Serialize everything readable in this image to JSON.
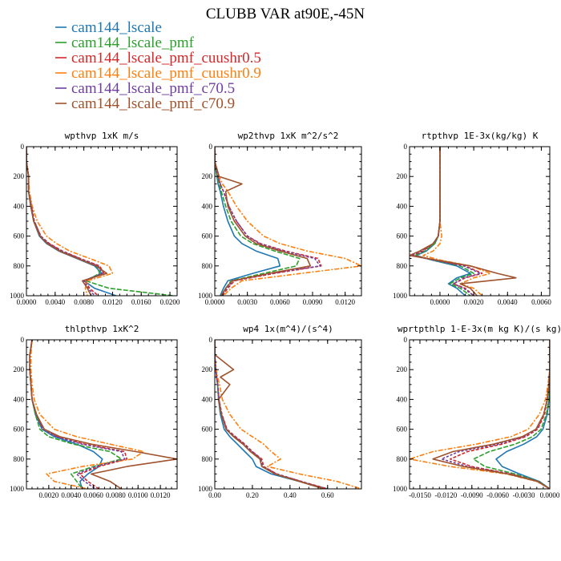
{
  "figure": {
    "title": "CLUBB VAR at90E,-45N"
  },
  "legend": [
    {
      "name": "cam144_lscale",
      "color": "#1f77b4",
      "dash": ""
    },
    {
      "name": "cam144_lscale_pmf",
      "color": "#2ca02c",
      "dash": "6,2"
    },
    {
      "name": "cam144_lscale_pmf_cuushr0.5",
      "color": "#d62728",
      "dash": "4,2"
    },
    {
      "name": "cam144_lscale_pmf_cuushr0.9",
      "color": "#ff7f0e",
      "dash": "6,2,2,2"
    },
    {
      "name": "cam144_lscale_pmf_c70.5",
      "color": "#6f3fa0",
      "dash": "3,2"
    },
    {
      "name": "cam144_lscale_pmf_c70.9",
      "color": "#a0522d",
      "dash": ""
    }
  ],
  "chart_data": [
    {
      "type": "line",
      "title": "wpthvp  1xK m/s",
      "xlim": [
        0,
        0.021
      ],
      "ylim": [
        1000,
        0
      ],
      "xticks": [
        0.0,
        0.004,
        0.008,
        0.012,
        0.016,
        0.02
      ],
      "xtick_labels": [
        "0.0000",
        "0.0040",
        "0.0080",
        "0.0120",
        "0.0160",
        "0.0200"
      ],
      "yticks": [
        0,
        200,
        400,
        600,
        800,
        1000
      ],
      "ytick_labels": [
        "0",
        "200",
        "400",
        "600",
        "800",
        "1000"
      ],
      "y": [
        0,
        100,
        200,
        300,
        400,
        500,
        600,
        650,
        700,
        750,
        800,
        850,
        900,
        950,
        1000
      ],
      "series": [
        {
          "name": "cam144_lscale",
          "values": [
            0,
            0,
            0.0003,
            0.0003,
            0.0006,
            0.001,
            0.0018,
            0.0028,
            0.0045,
            0.007,
            0.0095,
            0.0105,
            0.008,
            0.0095,
            0.0125
          ]
        },
        {
          "name": "cam144_lscale_pmf",
          "values": [
            0,
            0,
            0.0003,
            0.0003,
            0.0006,
            0.001,
            0.0019,
            0.003,
            0.0047,
            0.0072,
            0.0098,
            0.0102,
            0.0083,
            0.0115,
            0.0205
          ]
        },
        {
          "name": "cam144_lscale_pmf_cuushr0.5",
          "values": [
            0,
            0,
            0.0003,
            0.0003,
            0.0007,
            0.0011,
            0.002,
            0.0032,
            0.005,
            0.0075,
            0.0102,
            0.0108,
            0.0082,
            0.0088,
            0.01
          ]
        },
        {
          "name": "cam144_lscale_pmf_cuushr0.9",
          "values": [
            0,
            0,
            0.0003,
            0.0004,
            0.0008,
            0.0015,
            0.0028,
            0.0042,
            0.006,
            0.0088,
            0.0115,
            0.012,
            0.0085,
            0.0082,
            0.0085
          ]
        },
        {
          "name": "cam144_lscale_pmf_c70.5",
          "values": [
            0,
            0,
            0.0003,
            0.0003,
            0.0007,
            0.0011,
            0.002,
            0.0031,
            0.0049,
            0.0074,
            0.01,
            0.0106,
            0.008,
            0.0086,
            0.0095
          ]
        },
        {
          "name": "cam144_lscale_pmf_c70.9",
          "values": [
            0,
            0,
            0.0003,
            0.0003,
            0.0006,
            0.001,
            0.0019,
            0.0029,
            0.0046,
            0.0071,
            0.0097,
            0.0112,
            0.0078,
            0.0085,
            0.009
          ]
        }
      ]
    },
    {
      "type": "line",
      "title": "wp2thvp  1xK m^2/s^2",
      "xlim": [
        0,
        0.0135
      ],
      "ylim": [
        1000,
        0
      ],
      "xticks": [
        0.0,
        0.003,
        0.006,
        0.009,
        0.012
      ],
      "xtick_labels": [
        "0.0000",
        "0.0030",
        "0.0060",
        "0.0090",
        "0.0120"
      ],
      "yticks": [
        0,
        200,
        400,
        600,
        800,
        1000
      ],
      "ytick_labels": [
        "0",
        "200",
        "400",
        "600",
        "800",
        "1000"
      ],
      "y": [
        0,
        100,
        200,
        250,
        300,
        400,
        500,
        600,
        650,
        700,
        750,
        800,
        850,
        900,
        950,
        1000
      ],
      "series": [
        {
          "name": "cam144_lscale",
          "values": [
            0,
            0,
            0.0002,
            0.0003,
            0.0005,
            0.0008,
            0.0012,
            0.0018,
            0.0025,
            0.0038,
            0.0058,
            0.006,
            0.0035,
            0.0012,
            0.0008,
            0.0005
          ]
        },
        {
          "name": "cam144_lscale_pmf",
          "values": [
            0,
            0,
            0.0002,
            0.0004,
            0.0006,
            0.001,
            0.0015,
            0.0024,
            0.0035,
            0.0055,
            0.0078,
            0.0075,
            0.0045,
            0.0015,
            0.001,
            0.0006
          ]
        },
        {
          "name": "cam144_lscale_pmf_cuushr0.5",
          "values": [
            0,
            0,
            0.0003,
            0.0005,
            0.0008,
            0.0013,
            0.002,
            0.003,
            0.0042,
            0.0065,
            0.0095,
            0.0098,
            0.0055,
            0.0018,
            0.0012,
            0.0007
          ]
        },
        {
          "name": "cam144_lscale_pmf_cuushr0.9",
          "values": [
            0,
            0,
            0.0004,
            0.0007,
            0.0012,
            0.002,
            0.003,
            0.0045,
            0.006,
            0.0085,
            0.012,
            0.0135,
            0.008,
            0.0025,
            0.0015,
            0.0008
          ]
        },
        {
          "name": "cam144_lscale_pmf_c70.5",
          "values": [
            0,
            0,
            0.0003,
            0.0005,
            0.0008,
            0.0013,
            0.002,
            0.003,
            0.0041,
            0.0063,
            0.0092,
            0.0097,
            0.0052,
            0.0017,
            0.0011,
            0.0006
          ]
        },
        {
          "name": "cam144_lscale_pmf_c70.9",
          "values": [
            0,
            0,
            0.0004,
            0.0025,
            0.001,
            0.0012,
            0.0018,
            0.0028,
            0.0038,
            0.006,
            0.0085,
            0.0088,
            0.005,
            0.0016,
            0.001,
            0.0006
          ]
        }
      ]
    },
    {
      "type": "line",
      "title": "rtpthvp  1E-3x(kg/kg) K",
      "xlim": [
        -0.0018,
        0.0065
      ],
      "ylim": [
        1000,
        0
      ],
      "xticks": [
        0.0,
        0.002,
        0.004,
        0.006
      ],
      "xtick_labels": [
        "0.0000",
        "0.0020",
        "0.0040",
        "0.0060"
      ],
      "yticks": [
        0,
        200,
        400,
        600,
        800,
        1000
      ],
      "ytick_labels": [
        "0",
        "200",
        "400",
        "600",
        "800",
        "1000"
      ],
      "y": [
        0,
        200,
        400,
        500,
        600,
        650,
        700,
        730,
        760,
        800,
        850,
        880,
        920,
        950,
        1000
      ],
      "series": [
        {
          "name": "cam144_lscale",
          "values": [
            0,
            0,
            0,
            0,
            -0.0001,
            -0.0003,
            -0.0008,
            -0.0014,
            -0.0005,
            0.001,
            0.0018,
            0.001,
            0.0005,
            0.001,
            0.0015
          ]
        },
        {
          "name": "cam144_lscale_pmf",
          "values": [
            0,
            0,
            0,
            0,
            -0.0001,
            -0.0003,
            -0.0009,
            -0.0015,
            -0.0004,
            0.0012,
            0.002,
            0.0012,
            0.0006,
            0.0012,
            0.0018
          ]
        },
        {
          "name": "cam144_lscale_pmf_cuushr0.5",
          "values": [
            0,
            0,
            0,
            0,
            -0.0001,
            -0.0004,
            -0.001,
            -0.0016,
            -0.0003,
            0.0015,
            0.0025,
            0.0015,
            0.0008,
            0.0015,
            0.002
          ]
        },
        {
          "name": "cam144_lscale_pmf_cuushr0.9",
          "values": [
            0,
            0,
            0,
            0,
            0.0001,
            0,
            -0.0004,
            -0.001,
            0,
            0.0018,
            0.003,
            0.002,
            0.0012,
            0.002,
            0.0025
          ]
        },
        {
          "name": "cam144_lscale_pmf_c70.5",
          "values": [
            0,
            0,
            0,
            0,
            -0.0001,
            -0.0004,
            -0.0011,
            -0.0017,
            -0.0004,
            0.0014,
            0.0024,
            0.0014,
            0.0008,
            0.0014,
            0.002
          ]
        },
        {
          "name": "cam144_lscale_pmf_c70.9",
          "values": [
            0,
            0,
            0,
            0,
            -0.0001,
            -0.0004,
            -0.0012,
            -0.0018,
            -0.0002,
            0.0018,
            0.0034,
            0.0045,
            0.0012,
            0.0018,
            0.0022
          ]
        }
      ]
    },
    {
      "type": "line",
      "title": "thlpthvp  1xK^2",
      "xlim": [
        0,
        0.0135
      ],
      "ylim": [
        1000,
        0
      ],
      "xticks": [
        0.002,
        0.004,
        0.006,
        0.008,
        0.01,
        0.012
      ],
      "xtick_labels": [
        "0.0020",
        "0.0040",
        "0.0060",
        "0.0080",
        "0.0100",
        "0.0120"
      ],
      "yticks": [
        0,
        200,
        400,
        600,
        800,
        1000
      ],
      "ytick_labels": [
        "0",
        "200",
        "400",
        "600",
        "800",
        "1000"
      ],
      "y": [
        0,
        100,
        200,
        300,
        400,
        500,
        600,
        650,
        700,
        750,
        800,
        850,
        900,
        950,
        1000
      ],
      "series": [
        {
          "name": "cam144_lscale",
          "values": [
            0.0005,
            0.0003,
            0.0003,
            0.0004,
            0.0005,
            0.0008,
            0.0014,
            0.0025,
            0.0045,
            0.006,
            0.0068,
            0.0065,
            0.0055,
            0.0048,
            0.005
          ]
        },
        {
          "name": "cam144_lscale_pmf",
          "values": [
            0.0005,
            0.0003,
            0.0003,
            0.0004,
            0.0005,
            0.0008,
            0.0012,
            0.002,
            0.0042,
            0.0075,
            0.0085,
            0.006,
            0.004,
            0.0045,
            0.005
          ]
        },
        {
          "name": "cam144_lscale_pmf_cuushr0.5",
          "values": [
            0.0005,
            0.0003,
            0.0003,
            0.0004,
            0.0005,
            0.0009,
            0.0015,
            0.0028,
            0.0052,
            0.0088,
            0.009,
            0.0065,
            0.0048,
            0.0055,
            0.0065
          ]
        },
        {
          "name": "cam144_lscale_pmf_cuushr0.9",
          "values": [
            0.0005,
            0.0004,
            0.0004,
            0.0005,
            0.0007,
            0.0012,
            0.0025,
            0.0045,
            0.0075,
            0.0105,
            0.0095,
            0.005,
            0.0018,
            0.0025,
            0.0055
          ]
        },
        {
          "name": "cam144_lscale_pmf_c70.5",
          "values": [
            0.0005,
            0.0003,
            0.0003,
            0.0004,
            0.0005,
            0.0009,
            0.0015,
            0.0027,
            0.005,
            0.0085,
            0.0088,
            0.0062,
            0.0045,
            0.0052,
            0.0062
          ]
        },
        {
          "name": "cam144_lscale_pmf_c70.9",
          "values": [
            0.0005,
            0.0003,
            0.0003,
            0.0004,
            0.0005,
            0.0009,
            0.0016,
            0.003,
            0.0058,
            0.0098,
            0.0135,
            0.009,
            0.0058,
            0.0075,
            0.0085
          ]
        }
      ]
    },
    {
      "type": "line",
      "title": "wp4  1x(m^4)/(s^4)",
      "xlim": [
        0,
        0.78
      ],
      "ylim": [
        1000,
        0
      ],
      "xticks": [
        0.0,
        0.2,
        0.4,
        0.6
      ],
      "xtick_labels": [
        "0.00",
        "0.20",
        "0.40",
        "0.60"
      ],
      "yticks": [
        0,
        200,
        400,
        600,
        800,
        1000
      ],
      "ytick_labels": [
        "0",
        "200",
        "400",
        "600",
        "800",
        "1000"
      ],
      "y": [
        0,
        100,
        200,
        250,
        300,
        400,
        500,
        600,
        650,
        700,
        750,
        800,
        850,
        900,
        950,
        1000
      ],
      "series": [
        {
          "name": "cam144_lscale",
          "values": [
            0,
            0,
            0.005,
            0.01,
            0.015,
            0.02,
            0.03,
            0.05,
            0.08,
            0.12,
            0.16,
            0.2,
            0.22,
            0.3,
            0.45,
            0.6
          ]
        },
        {
          "name": "cam144_lscale_pmf",
          "values": [
            0,
            0,
            0.005,
            0.01,
            0.015,
            0.02,
            0.035,
            0.06,
            0.1,
            0.15,
            0.19,
            0.24,
            0.25,
            0.32,
            0.45,
            0.58
          ]
        },
        {
          "name": "cam144_lscale_pmf_cuushr0.5",
          "values": [
            0,
            0,
            0.005,
            0.01,
            0.016,
            0.022,
            0.038,
            0.065,
            0.11,
            0.16,
            0.2,
            0.25,
            0.26,
            0.33,
            0.46,
            0.6
          ]
        },
        {
          "name": "cam144_lscale_pmf_cuushr0.9",
          "values": [
            0,
            0,
            0.008,
            0.015,
            0.025,
            0.04,
            0.08,
            0.14,
            0.2,
            0.26,
            0.3,
            0.35,
            0.28,
            0.45,
            0.65,
            0.78
          ]
        },
        {
          "name": "cam144_lscale_pmf_c70.5",
          "values": [
            0,
            0,
            0.005,
            0.01,
            0.016,
            0.022,
            0.037,
            0.063,
            0.105,
            0.155,
            0.198,
            0.245,
            0.255,
            0.33,
            0.46,
            0.58
          ]
        },
        {
          "name": "cam144_lscale_pmf_c70.9",
          "values": [
            0,
            0,
            0.1,
            0.03,
            0.08,
            0.02,
            0.035,
            0.06,
            0.1,
            0.15,
            0.19,
            0.24,
            0.25,
            0.32,
            0.45,
            0.58
          ]
        }
      ]
    },
    {
      "type": "line",
      "title": "wprtpthlp  1-E-3x(m kg K)/(s kg)",
      "xlim": [
        -0.0162,
        0
      ],
      "ylim": [
        1000,
        0
      ],
      "xticks": [
        -0.015,
        -0.012,
        -0.009,
        -0.006,
        -0.003,
        0.0
      ],
      "xtick_labels": [
        "-0.0150",
        "-0.0120",
        "-0.0090",
        "-0.0060",
        "-0.0030",
        "0.0000"
      ],
      "yticks": [
        0,
        200,
        400,
        600,
        800,
        1000
      ],
      "ytick_labels": [
        "0",
        "200",
        "400",
        "600",
        "800",
        "1000"
      ],
      "y": [
        0,
        100,
        200,
        300,
        400,
        500,
        600,
        650,
        700,
        750,
        800,
        850,
        900,
        950,
        1000
      ],
      "series": [
        {
          "name": "cam144_lscale",
          "values": [
            0,
            0,
            0,
            0,
            -0.0001,
            -0.0003,
            -0.0008,
            -0.0015,
            -0.003,
            -0.005,
            -0.0062,
            -0.0055,
            -0.0035,
            -0.0012,
            0
          ]
        },
        {
          "name": "cam144_lscale_pmf",
          "values": [
            0,
            0,
            0,
            0,
            -0.0001,
            -0.0004,
            -0.001,
            -0.002,
            -0.004,
            -0.007,
            -0.0088,
            -0.0075,
            -0.004,
            -0.0013,
            0
          ]
        },
        {
          "name": "cam144_lscale_pmf_cuushr0.5",
          "values": [
            0,
            0,
            0,
            -0.0001,
            -0.0003,
            -0.0006,
            -0.0014,
            -0.0028,
            -0.0055,
            -0.0095,
            -0.0115,
            -0.009,
            -0.0045,
            -0.0014,
            0
          ]
        },
        {
          "name": "cam144_lscale_pmf_cuushr0.9",
          "values": [
            0,
            0,
            0,
            -0.0002,
            -0.0005,
            -0.0012,
            -0.0025,
            -0.0045,
            -0.0085,
            -0.0135,
            -0.0162,
            -0.0115,
            -0.005,
            -0.0015,
            0
          ]
        },
        {
          "name": "cam144_lscale_pmf_c70.5",
          "values": [
            0,
            0,
            0,
            -0.0001,
            -0.0003,
            -0.0007,
            -0.0015,
            -0.003,
            -0.006,
            -0.0105,
            -0.0125,
            -0.0095,
            -0.0046,
            -0.0014,
            0
          ]
        },
        {
          "name": "cam144_lscale_pmf_c70.9",
          "values": [
            0,
            0,
            0,
            -0.0001,
            -0.0003,
            -0.0007,
            -0.0016,
            -0.0032,
            -0.0065,
            -0.0112,
            -0.0135,
            -0.01,
            -0.0048,
            -0.0014,
            0
          ]
        }
      ]
    }
  ]
}
